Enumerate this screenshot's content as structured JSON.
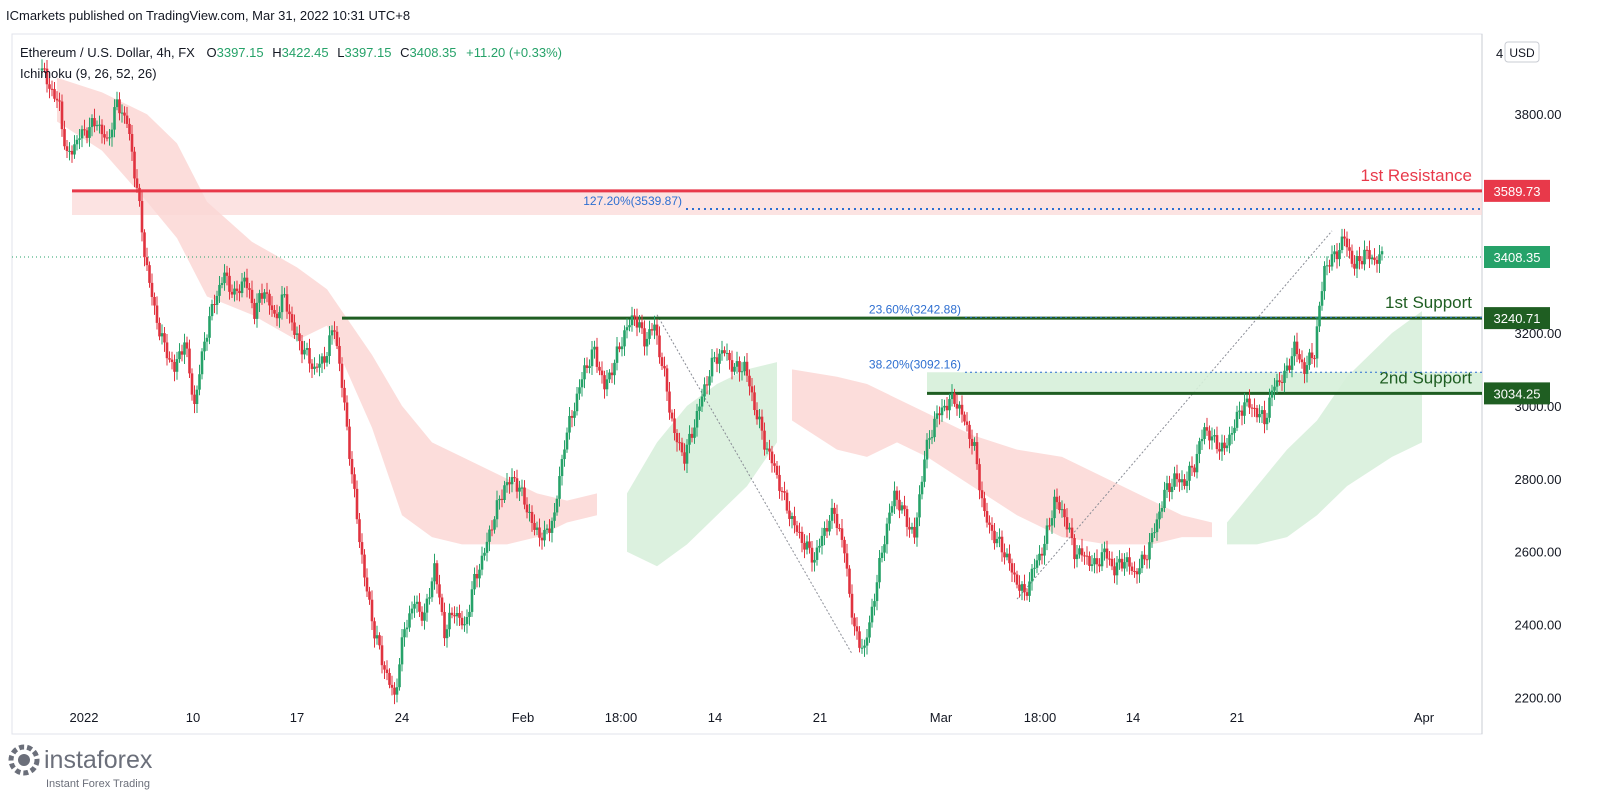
{
  "header": {
    "published": "ICmarkets published on TradingView.com, Mar 31, 2022 10:31 UTC+8",
    "symbol": "Ethereum / U.S. Dollar, 4h, FX",
    "ohlc_o_label": "O",
    "ohlc_o": "3397.15",
    "ohlc_h_label": "H",
    "ohlc_h": "3422.45",
    "ohlc_l_label": "L",
    "ohlc_l": "3397.15",
    "ohlc_c_label": "C",
    "ohlc_c": "3408.35",
    "change": "+11.20 (+0.33%)",
    "indicator": "Ichimoku (9, 26, 52, 26)"
  },
  "currency_button": "USD",
  "watermark": {
    "brand": "instaforex",
    "tagline": "Instant Forex Trading"
  },
  "colors": {
    "bull": "#26a269",
    "bear": "#e0333f",
    "resistance": "#e8394a",
    "support": "#1f5e22",
    "fib": "#2e6fd1",
    "cloud_red": "#fbd7d5",
    "cloud_green": "#d6efd9",
    "axis_text": "#131722",
    "grid_border": "#e0e3eb"
  },
  "chart_data": {
    "type": "candlestick",
    "y_axis": {
      "min": 2100,
      "max": 4020,
      "ticks": [
        2200,
        2400,
        2600,
        2800,
        3000,
        3200,
        3800
      ],
      "tick_labels": [
        "2200.00",
        "2400.00",
        "2600.00",
        "2800.00",
        "3000.00",
        "3200.00",
        "3800.00"
      ],
      "top_label": "4"
    },
    "x_axis": {
      "ticks": [
        "2022",
        "10",
        "17",
        "24",
        "Feb",
        "18:00",
        "14",
        "21",
        "Mar",
        "18:00",
        "14",
        "21",
        "Apr"
      ]
    },
    "price_path": [
      [
        3920,
        "2022-01-01 00:00"
      ],
      [
        3820,
        "2022-01-02 04:00"
      ],
      [
        3680,
        "2022-01-02 16:00"
      ],
      [
        3740,
        "2022-01-03 12:00"
      ],
      [
        3780,
        "2022-01-04 16:00"
      ],
      [
        3720,
        "2022-01-05 08:00"
      ],
      [
        3830,
        "2022-01-06 00:00"
      ],
      [
        3780,
        "2022-01-06 16:00"
      ],
      [
        3600,
        "2022-01-07 08:00"
      ],
      [
        3420,
        "2022-01-07 20:00"
      ],
      [
        3260,
        "2022-01-08 12:00"
      ],
      [
        3160,
        "2022-01-09 04:00"
      ],
      [
        3100,
        "2022-01-09 20:00"
      ],
      [
        3180,
        "2022-01-10 12:00"
      ],
      [
        3000,
        "2022-01-11 04:00"
      ],
      [
        3180,
        "2022-01-11 20:00"
      ],
      [
        3290,
        "2022-01-12 12:00"
      ],
      [
        3360,
        "2022-01-13 04:00"
      ],
      [
        3300,
        "2022-01-13 20:00"
      ],
      [
        3350,
        "2022-01-14 12:00"
      ],
      [
        3260,
        "2022-01-15 04:00"
      ],
      [
        3320,
        "2022-01-15 20:00"
      ],
      [
        3240,
        "2022-01-16 12:00"
      ],
      [
        3300,
        "2022-01-17 04:00"
      ],
      [
        3200,
        "2022-01-17 20:00"
      ],
      [
        3150,
        "2022-01-18 12:00"
      ],
      [
        3100,
        "2022-01-19 04:00"
      ],
      [
        3130,
        "2022-01-19 20:00"
      ],
      [
        3220,
        "2022-01-20 12:00"
      ],
      [
        3000,
        "2022-01-21 04:00"
      ],
      [
        2750,
        "2022-01-21 20:00"
      ],
      [
        2530,
        "2022-01-22 12:00"
      ],
      [
        2380,
        "2022-01-23 04:00"
      ],
      [
        2280,
        "2022-01-23 20:00"
      ],
      [
        2200,
        "2022-01-24 12:00"
      ],
      [
        2390,
        "2022-01-25 04:00"
      ],
      [
        2460,
        "2022-01-25 20:00"
      ],
      [
        2420,
        "2022-01-26 12:00"
      ],
      [
        2560,
        "2022-01-27 04:00"
      ],
      [
        2380,
        "2022-01-27 20:00"
      ],
      [
        2440,
        "2022-01-28 12:00"
      ],
      [
        2390,
        "2022-01-29 04:00"
      ],
      [
        2520,
        "2022-01-29 20:00"
      ],
      [
        2600,
        "2022-01-30 12:00"
      ],
      [
        2700,
        "2022-01-31 04:00"
      ],
      [
        2780,
        "2022-01-31 20:00"
      ],
      [
        2800,
        "2022-02-01 12:00"
      ],
      [
        2740,
        "2022-02-02 04:00"
      ],
      [
        2660,
        "2022-02-02 20:00"
      ],
      [
        2640,
        "2022-02-03 12:00"
      ],
      [
        2700,
        "2022-02-04 04:00"
      ],
      [
        2900,
        "2022-02-04 20:00"
      ],
      [
        3000,
        "2022-02-05 12:00"
      ],
      [
        3100,
        "2022-02-06 04:00"
      ],
      [
        3150,
        "2022-02-06 20:00"
      ],
      [
        3050,
        "2022-02-07 12:00"
      ],
      [
        3120,
        "2022-02-08 04:00"
      ],
      [
        3200,
        "2022-02-08 20:00"
      ],
      [
        3250,
        "2022-02-09 12:00"
      ],
      [
        3180,
        "2022-02-10 04:00"
      ],
      [
        3220,
        "2022-02-10 20:00"
      ],
      [
        3080,
        "2022-02-11 12:00"
      ],
      [
        2920,
        "2022-02-12 04:00"
      ],
      [
        2860,
        "2022-02-12 20:00"
      ],
      [
        2950,
        "2022-02-13 12:00"
      ],
      [
        3050,
        "2022-02-14 04:00"
      ],
      [
        3130,
        "2022-02-14 20:00"
      ],
      [
        3150,
        "2022-02-15 12:00"
      ],
      [
        3100,
        "2022-02-16 04:00"
      ],
      [
        3110,
        "2022-02-16 20:00"
      ],
      [
        3000,
        "2022-02-17 12:00"
      ],
      [
        2900,
        "2022-02-18 04:00"
      ],
      [
        2830,
        "2022-02-18 20:00"
      ],
      [
        2740,
        "2022-02-19 12:00"
      ],
      [
        2670,
        "2022-02-20 04:00"
      ],
      [
        2620,
        "2022-02-20 20:00"
      ],
      [
        2580,
        "2022-02-21 12:00"
      ],
      [
        2660,
        "2022-02-22 04:00"
      ],
      [
        2710,
        "2022-02-22 20:00"
      ],
      [
        2600,
        "2022-02-23 12:00"
      ],
      [
        2380,
        "2022-02-24 04:00"
      ],
      [
        2330,
        "2022-02-24 20:00"
      ],
      [
        2480,
        "2022-02-25 12:00"
      ],
      [
        2640,
        "2022-02-26 04:00"
      ],
      [
        2760,
        "2022-02-26 20:00"
      ],
      [
        2700,
        "2022-02-27 12:00"
      ],
      [
        2640,
        "2022-02-28 04:00"
      ],
      [
        2860,
        "2022-02-28 20:00"
      ],
      [
        2960,
        "2022-03-01 12:00"
      ],
      [
        3000,
        "2022-03-02 04:00"
      ],
      [
        3020,
        "2022-03-02 20:00"
      ],
      [
        2960,
        "2022-03-03 12:00"
      ],
      [
        2880,
        "2022-03-04 04:00"
      ],
      [
        2700,
        "2022-03-04 20:00"
      ],
      [
        2640,
        "2022-03-05 12:00"
      ],
      [
        2600,
        "2022-03-06 04:00"
      ],
      [
        2530,
        "2022-03-06 20:00"
      ],
      [
        2480,
        "2022-03-07 12:00"
      ],
      [
        2560,
        "2022-03-08 04:00"
      ],
      [
        2620,
        "2022-03-08 20:00"
      ],
      [
        2740,
        "2022-03-09 12:00"
      ],
      [
        2700,
        "2022-03-10 04:00"
      ],
      [
        2600,
        "2022-03-10 20:00"
      ],
      [
        2590,
        "2022-03-11 12:00"
      ],
      [
        2560,
        "2022-03-12 04:00"
      ],
      [
        2600,
        "2022-03-12 20:00"
      ],
      [
        2550,
        "2022-03-13 12:00"
      ],
      [
        2580,
        "2022-03-14 04:00"
      ],
      [
        2540,
        "2022-03-14 20:00"
      ],
      [
        2580,
        "2022-03-15 12:00"
      ],
      [
        2660,
        "2022-03-16 04:00"
      ],
      [
        2760,
        "2022-03-16 20:00"
      ],
      [
        2800,
        "2022-03-17 12:00"
      ],
      [
        2790,
        "2022-03-18 04:00"
      ],
      [
        2840,
        "2022-03-18 20:00"
      ],
      [
        2940,
        "2022-03-19 12:00"
      ],
      [
        2900,
        "2022-03-20 04:00"
      ],
      [
        2880,
        "2022-03-20 20:00"
      ],
      [
        2950,
        "2022-03-21 12:00"
      ],
      [
        3010,
        "2022-03-22 04:00"
      ],
      [
        2990,
        "2022-03-22 20:00"
      ],
      [
        2960,
        "2022-03-23 12:00"
      ],
      [
        3060,
        "2022-03-24 04:00"
      ],
      [
        3080,
        "2022-03-24 20:00"
      ],
      [
        3160,
        "2022-03-25 12:00"
      ],
      [
        3100,
        "2022-03-26 04:00"
      ],
      [
        3150,
        "2022-03-26 20:00"
      ],
      [
        3380,
        "2022-03-27 12:00"
      ],
      [
        3410,
        "2022-03-28 04:00"
      ],
      [
        3460,
        "2022-03-28 20:00"
      ],
      [
        3380,
        "2022-03-29 12:00"
      ],
      [
        3420,
        "2022-03-30 04:00"
      ],
      [
        3400,
        "2022-03-30 20:00"
      ],
      [
        3408,
        "2022-03-31 08:00"
      ]
    ],
    "cloud_red": [
      [
        "2022-01-02",
        3900,
        3780
      ],
      [
        "2022-01-05",
        3860,
        3700
      ],
      [
        "2022-01-08",
        3800,
        3560
      ],
      [
        "2022-01-10",
        3720,
        3460
      ],
      [
        "2022-01-12",
        3560,
        3300
      ],
      [
        "2022-01-15",
        3450,
        3250
      ],
      [
        "2022-01-18",
        3380,
        3180
      ],
      [
        "2022-01-20",
        3320,
        3220
      ],
      [
        "2022-01-23",
        3140,
        2940
      ],
      [
        "2022-01-25",
        3000,
        2700
      ],
      [
        "2022-01-27",
        2900,
        2640
      ],
      [
        "2022-01-29",
        2860,
        2620
      ],
      [
        "2022-02-01",
        2800,
        2620
      ],
      [
        "2022-02-03",
        2760,
        2640
      ],
      [
        "2022-02-05",
        2740,
        2680
      ],
      [
        "2022-02-07",
        2760,
        2700
      ]
    ],
    "cloud_green": [
      [
        "2022-02-09",
        2760,
        2600
      ],
      [
        "2022-02-11",
        2900,
        2560
      ],
      [
        "2022-02-13",
        3000,
        2620
      ],
      [
        "2022-02-15",
        3060,
        2700
      ],
      [
        "2022-02-17",
        3100,
        2780
      ],
      [
        "2022-02-19",
        3120,
        2900
      ]
    ],
    "cloud_red_2": [
      [
        "2022-02-20",
        3100,
        2960
      ],
      [
        "2022-02-23",
        3080,
        2880
      ],
      [
        "2022-02-25",
        3060,
        2860
      ],
      [
        "2022-02-27",
        3020,
        2900
      ],
      [
        "2022-03-01",
        2980,
        2860
      ],
      [
        "2022-03-04",
        2920,
        2780
      ],
      [
        "2022-03-07",
        2880,
        2700
      ],
      [
        "2022-03-10",
        2860,
        2640
      ],
      [
        "2022-03-13",
        2800,
        2620
      ],
      [
        "2022-03-16",
        2740,
        2620
      ],
      [
        "2022-03-18",
        2700,
        2640
      ],
      [
        "2022-03-20",
        2680,
        2640
      ]
    ],
    "cloud_green_2": [
      [
        "2022-03-21",
        2680,
        2620
      ],
      [
        "2022-03-23",
        2780,
        2620
      ],
      [
        "2022-03-25",
        2880,
        2640
      ],
      [
        "2022-03-27",
        2960,
        2700
      ],
      [
        "2022-03-29",
        3080,
        2780
      ],
      [
        "2022-04-01",
        3200,
        2860
      ],
      [
        "2022-04-03",
        3260,
        2900
      ]
    ],
    "levels": {
      "resistance": {
        "label": "1st Resistance",
        "value": 3589.73,
        "value_label": "3589.73",
        "from": "2022-01-03"
      },
      "support1": {
        "label": "1st Support",
        "value": 3240.71,
        "value_label": "3240.71",
        "from": "2022-01-21"
      },
      "support2": {
        "label": "2nd Support",
        "value": 3034.25,
        "value_label": "3034.25",
        "from": "2022-03-01"
      },
      "current": {
        "value": 3408.35,
        "value_label": "3408.35"
      }
    },
    "fibs": [
      {
        "label": "127.20%(3539.87)",
        "value": 3539.87
      },
      {
        "label": "23.60%(3242.88)",
        "value": 3242.88
      },
      {
        "label": "38.20%(3092.16)",
        "value": 3092.16
      }
    ],
    "trendlines": [
      {
        "from": [
          "2022-02-11",
          3250
        ],
        "to": [
          "2022-02-24",
          2320
        ]
      },
      {
        "from": [
          "2022-03-07",
          2470
        ],
        "to": [
          "2022-03-28",
          3480
        ]
      }
    ]
  }
}
